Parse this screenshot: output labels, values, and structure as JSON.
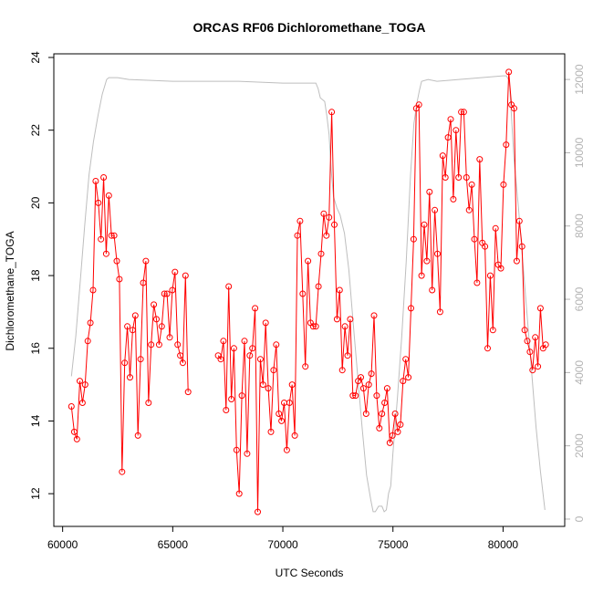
{
  "chart_data": {
    "type": "line",
    "title": "ORCAS RF06 Dichloromethane_TOGA",
    "xlabel": "UTC Seconds",
    "ylabel": "Dichloromethane_TOGA",
    "xlim": [
      59600,
      82800
    ],
    "ylim": [
      11.1,
      24.1
    ],
    "y2lim": [
      -200,
      12700
    ],
    "x_ticks": [
      60000,
      65000,
      70000,
      75000,
      80000
    ],
    "x_tick_labels": [
      "60000",
      "65000",
      "70000",
      "75000",
      "80000"
    ],
    "y_ticks": [
      12,
      14,
      16,
      18,
      20,
      22,
      24
    ],
    "y_tick_labels": [
      "12",
      "14",
      "16",
      "18",
      "20",
      "22",
      "24"
    ],
    "y2_ticks": [
      0,
      2000,
      4000,
      6000,
      8000,
      10000,
      12000
    ],
    "y2_tick_labels": [
      "0",
      "2000",
      "4000",
      "6000",
      "8000",
      "10000",
      "12000"
    ],
    "grid": false,
    "legend": "none",
    "colors": {
      "series": "#ff0000",
      "altitude": "#bebebe",
      "right_axis": "#b3b3b3",
      "frame": "#000000"
    },
    "series": [
      {
        "segments": [
          [
            [
              60400,
              14.4
            ],
            [
              60530,
              13.7
            ],
            [
              60650,
              13.5
            ],
            [
              60780,
              15.1
            ],
            [
              60900,
              14.5
            ],
            [
              61020,
              15.0
            ],
            [
              61140,
              16.2
            ],
            [
              61260,
              16.7
            ],
            [
              61380,
              17.6
            ],
            [
              61500,
              20.6
            ],
            [
              61620,
              20.0
            ],
            [
              61740,
              19.0
            ],
            [
              61860,
              20.7
            ],
            [
              61980,
              18.6
            ],
            [
              62100,
              20.2
            ],
            [
              62220,
              19.1
            ],
            [
              62340,
              19.1
            ],
            [
              62460,
              18.4
            ],
            [
              62580,
              17.9
            ],
            [
              62700,
              12.6
            ],
            [
              62820,
              15.6
            ],
            [
              62940,
              16.6
            ],
            [
              63060,
              15.2
            ],
            [
              63180,
              16.5
            ],
            [
              63300,
              16.9
            ],
            [
              63420,
              13.6
            ],
            [
              63540,
              15.7
            ],
            [
              63660,
              17.8
            ],
            [
              63780,
              18.4
            ],
            [
              63900,
              14.5
            ],
            [
              64020,
              16.1
            ],
            [
              64140,
              17.2
            ],
            [
              64260,
              16.8
            ],
            [
              64380,
              16.1
            ],
            [
              64500,
              16.6
            ],
            [
              64620,
              17.5
            ],
            [
              64740,
              17.5
            ],
            [
              64860,
              16.3
            ],
            [
              64980,
              17.6
            ],
            [
              65100,
              18.1
            ],
            [
              65220,
              16.1
            ],
            [
              65340,
              15.8
            ],
            [
              65460,
              15.6
            ],
            [
              65580,
              18.0
            ],
            [
              65700,
              14.8
            ]
          ],
          [
            [
              67060,
              15.8
            ],
            [
              67180,
              15.7
            ],
            [
              67300,
              16.2
            ],
            [
              67420,
              14.3
            ],
            [
              67540,
              17.7
            ],
            [
              67660,
              14.6
            ],
            [
              67780,
              16.0
            ],
            [
              67900,
              13.2
            ],
            [
              68020,
              12.0
            ],
            [
              68140,
              14.7
            ],
            [
              68260,
              16.2
            ],
            [
              68380,
              13.1
            ],
            [
              68500,
              15.8
            ],
            [
              68620,
              16.0
            ],
            [
              68740,
              17.1
            ],
            [
              68860,
              11.5
            ],
            [
              68980,
              15.7
            ],
            [
              69100,
              15.0
            ],
            [
              69220,
              16.7
            ],
            [
              69340,
              14.9
            ],
            [
              69460,
              13.7
            ],
            [
              69580,
              15.4
            ],
            [
              69700,
              16.1
            ],
            [
              69820,
              14.2
            ],
            [
              69940,
              14.0
            ],
            [
              70060,
              14.5
            ],
            [
              70180,
              13.2
            ],
            [
              70300,
              14.5
            ],
            [
              70420,
              15.0
            ],
            [
              70540,
              13.6
            ],
            [
              70660,
              19.1
            ],
            [
              70780,
              19.5
            ],
            [
              70900,
              17.5
            ],
            [
              71020,
              15.5
            ],
            [
              71140,
              18.4
            ],
            [
              71260,
              16.7
            ],
            [
              71380,
              16.6
            ],
            [
              71500,
              16.6
            ],
            [
              71620,
              17.7
            ],
            [
              71740,
              18.6
            ],
            [
              71860,
              19.7
            ],
            [
              71980,
              19.1
            ],
            [
              72100,
              19.6
            ],
            [
              72220,
              22.5
            ],
            [
              72340,
              19.4
            ],
            [
              72460,
              16.8
            ],
            [
              72580,
              17.6
            ],
            [
              72700,
              15.4
            ],
            [
              72820,
              16.6
            ],
            [
              72940,
              15.8
            ],
            [
              73060,
              16.8
            ],
            [
              73180,
              14.7
            ],
            [
              73300,
              14.7
            ],
            [
              73420,
              15.1
            ],
            [
              73540,
              15.2
            ],
            [
              73660,
              14.9
            ],
            [
              73780,
              14.2
            ],
            [
              73900,
              15.0
            ],
            [
              74020,
              15.3
            ],
            [
              74140,
              16.9
            ],
            [
              74260,
              14.7
            ],
            [
              74380,
              13.8
            ],
            [
              74500,
              14.2
            ],
            [
              74620,
              14.5
            ],
            [
              74740,
              14.9
            ],
            [
              74860,
              13.4
            ],
            [
              74980,
              13.6
            ],
            [
              75100,
              14.2
            ],
            [
              75220,
              13.7
            ],
            [
              75340,
              13.9
            ],
            [
              75460,
              15.1
            ],
            [
              75580,
              15.7
            ],
            [
              75700,
              15.2
            ],
            [
              75820,
              17.1
            ],
            [
              75940,
              19.0
            ],
            [
              76060,
              22.6
            ],
            [
              76180,
              22.7
            ],
            [
              76300,
              18.0
            ],
            [
              76420,
              19.4
            ],
            [
              76540,
              18.4
            ],
            [
              76660,
              20.3
            ],
            [
              76780,
              17.6
            ],
            [
              76900,
              19.8
            ],
            [
              77020,
              18.6
            ],
            [
              77140,
              17.0
            ],
            [
              77260,
              21.3
            ],
            [
              77380,
              20.7
            ],
            [
              77500,
              21.8
            ],
            [
              77620,
              22.3
            ],
            [
              77740,
              20.1
            ],
            [
              77860,
              22.0
            ],
            [
              77980,
              20.7
            ],
            [
              78100,
              22.5
            ],
            [
              78220,
              22.5
            ],
            [
              78340,
              20.7
            ],
            [
              78460,
              19.8
            ],
            [
              78580,
              20.5
            ],
            [
              78700,
              19.0
            ],
            [
              78820,
              17.8
            ],
            [
              78940,
              21.2
            ],
            [
              79060,
              18.9
            ],
            [
              79180,
              18.8
            ],
            [
              79300,
              16.0
            ],
            [
              79420,
              18.0
            ],
            [
              79540,
              16.5
            ],
            [
              79660,
              19.3
            ],
            [
              79780,
              18.3
            ],
            [
              79900,
              18.2
            ],
            [
              80020,
              20.5
            ],
            [
              80140,
              21.6
            ],
            [
              80260,
              23.6
            ],
            [
              80380,
              22.7
            ],
            [
              80500,
              22.6
            ],
            [
              80620,
              18.4
            ],
            [
              80740,
              19.5
            ],
            [
              80860,
              18.8
            ],
            [
              80980,
              16.5
            ],
            [
              81100,
              16.2
            ],
            [
              81220,
              15.9
            ],
            [
              81340,
              15.4
            ],
            [
              81460,
              16.3
            ],
            [
              81580,
              15.5
            ],
            [
              81700,
              17.1
            ],
            [
              81820,
              16.0
            ],
            [
              81940,
              16.1
            ]
          ]
        ]
      },
      {
        "axis": "right",
        "values": [
          [
            60400,
            3900
          ],
          [
            60600,
            5000
          ],
          [
            60800,
            6500
          ],
          [
            61000,
            8000
          ],
          [
            61200,
            9400
          ],
          [
            61400,
            10300
          ],
          [
            61600,
            11000
          ],
          [
            61800,
            11600
          ],
          [
            62000,
            12000
          ],
          [
            62100,
            12050
          ],
          [
            62500,
            12050
          ],
          [
            63000,
            12000
          ],
          [
            65000,
            11950
          ],
          [
            68000,
            11950
          ],
          [
            70000,
            11900
          ],
          [
            71000,
            11900
          ],
          [
            71500,
            11900
          ],
          [
            71600,
            11750
          ],
          [
            71700,
            11500
          ],
          [
            71900,
            11400
          ],
          [
            72000,
            11000
          ],
          [
            72100,
            10500
          ],
          [
            72200,
            9500
          ],
          [
            72300,
            8800
          ],
          [
            72450,
            8500
          ],
          [
            72600,
            8300
          ],
          [
            72800,
            7800
          ],
          [
            73000,
            6800
          ],
          [
            73200,
            5300
          ],
          [
            73400,
            3900
          ],
          [
            73600,
            2500
          ],
          [
            73800,
            1200
          ],
          [
            74000,
            500
          ],
          [
            74100,
            200
          ],
          [
            74200,
            200
          ],
          [
            74350,
            350
          ],
          [
            74500,
            350
          ],
          [
            74600,
            200
          ],
          [
            74700,
            250
          ],
          [
            74800,
            700
          ],
          [
            74900,
            900
          ],
          [
            75000,
            1800
          ],
          [
            75200,
            3300
          ],
          [
            75400,
            5000
          ],
          [
            75600,
            7000
          ],
          [
            75800,
            9400
          ],
          [
            75950,
            10800
          ],
          [
            76100,
            11400
          ],
          [
            76200,
            11700
          ],
          [
            76300,
            11950
          ],
          [
            76600,
            12000
          ],
          [
            77000,
            11950
          ],
          [
            78000,
            12000
          ],
          [
            79000,
            12050
          ],
          [
            80000,
            12100
          ],
          [
            80150,
            12100
          ],
          [
            80250,
            12000
          ],
          [
            80300,
            11800
          ],
          [
            80400,
            10800
          ],
          [
            80500,
            9800
          ],
          [
            80700,
            8500
          ],
          [
            80900,
            7000
          ],
          [
            81100,
            5500
          ],
          [
            81300,
            4000
          ],
          [
            81500,
            2500
          ],
          [
            81700,
            1300
          ],
          [
            81900,
            250
          ]
        ]
      }
    ]
  }
}
